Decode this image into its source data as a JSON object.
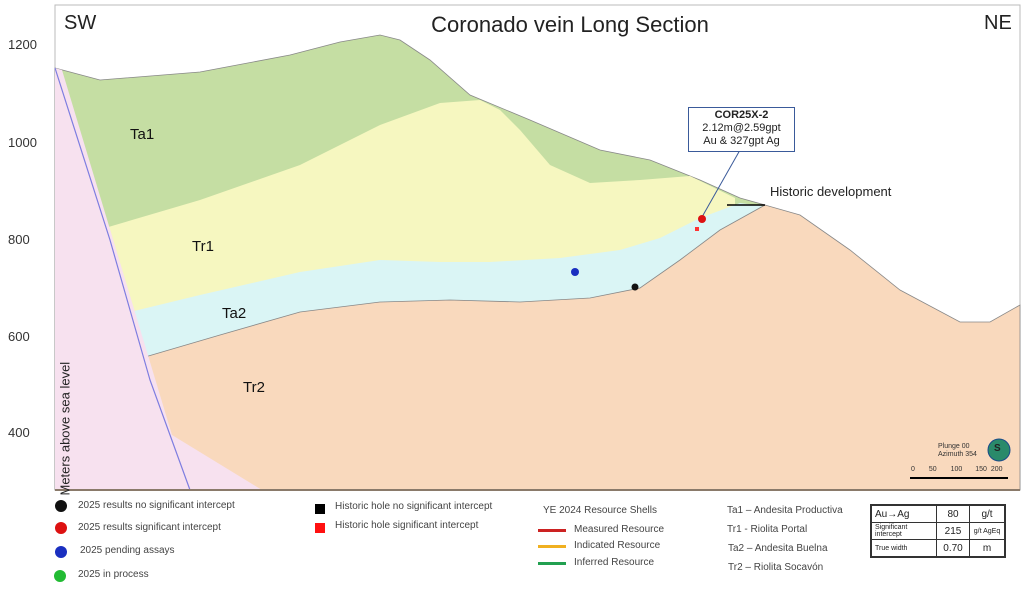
{
  "title": "Coronado vein Long Section",
  "corner_left": "SW",
  "corner_right": "NE",
  "y_axis": {
    "label": "Meters above sea level",
    "ticks": [
      "1200",
      "1000",
      "800",
      "600",
      "400"
    ]
  },
  "layers": [
    "Ta1",
    "Tr1",
    "Ta2",
    "Tr2"
  ],
  "callout": {
    "hole": "COR25X-2",
    "line1": "2.12m@2.59gpt",
    "line2": "Au & 327gpt Ag"
  },
  "historic_label": "Historic development",
  "orientation": {
    "plunge": "Plunge 00",
    "azimuth": "Azimuth 354",
    "compass": "S",
    "scale": [
      "0",
      "50",
      "100",
      "150",
      "200"
    ]
  },
  "legend_points": [
    {
      "label": "2025 results no significant intercept",
      "color": "#111111"
    },
    {
      "label": "2025 results significant intercept",
      "color": "#dd1111"
    },
    {
      "label": "2025 pending assays",
      "color": "#1a2fc0"
    },
    {
      "label": "2025 in process",
      "color": "#22bb33"
    }
  ],
  "legend_historic": [
    {
      "label": "Historic hole no significant intercept",
      "color": "#000000"
    },
    {
      "label": "Historic hole significant intercept",
      "color": "#ff1111"
    }
  ],
  "resource": {
    "title": "YE 2024 Resource Shells",
    "items": [
      {
        "label": "Measured Resource",
        "color": "#cc2222"
      },
      {
        "label": "Indicated Resource",
        "color": "#f0b020"
      },
      {
        "label": "Inferred Resource",
        "color": "#22a050"
      }
    ]
  },
  "lithology": [
    "Ta1 – Andesita Productiva",
    "Tr1 -  Riolita Portal",
    "Ta2 – Andesita Buelna",
    "Tr2 – Riolita Socavón"
  ],
  "params": [
    [
      "Au→Ag",
      "80",
      "g/t"
    ],
    [
      "Significant intercept",
      "215",
      "g/t AgEq"
    ],
    [
      "True width",
      "0.70",
      "m"
    ]
  ]
}
